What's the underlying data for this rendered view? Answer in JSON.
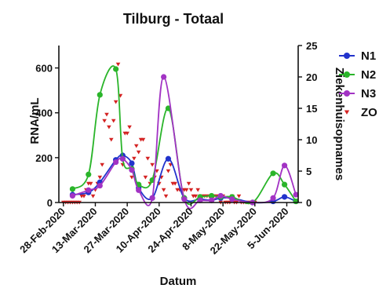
{
  "chart_data": {
    "type": "line",
    "title": "Tilburg - Totaal",
    "xlabel": "Datum",
    "ylabel": "RNA/mL",
    "y2label": "Ziekenhuisopnames",
    "x_tick_labels": [
      "28-Feb-2020",
      "13-Mar-2020",
      "27-Mar-2020",
      "10-Apr-2020",
      "24-Apr-2020",
      "8-May-2020",
      "22-May-2020",
      "5-Jun-2020"
    ],
    "x_ticks": [
      "2020-02-28",
      "2020-03-13",
      "2020-03-27",
      "2020-04-10",
      "2020-04-24",
      "2020-05-08",
      "2020-05-22",
      "2020-06-05"
    ],
    "xlim": [
      "2020-02-26",
      "2020-06-10"
    ],
    "ylim": [
      0,
      700
    ],
    "yticks": [
      0,
      200,
      400,
      600
    ],
    "y2lim": [
      0,
      25
    ],
    "y2ticks": [
      0,
      5,
      10,
      15,
      20,
      25
    ],
    "legend_position": "right",
    "series": [
      {
        "name": "N1",
        "axis": "left",
        "style": "line",
        "color": "#2233cc",
        "marker": "circle",
        "points": [
          [
            "2020-03-03",
            35
          ],
          [
            "2020-03-10",
            45
          ],
          [
            "2020-03-15",
            90
          ],
          [
            "2020-03-22",
            190
          ],
          [
            "2020-03-25",
            210
          ],
          [
            "2020-03-29",
            175
          ],
          [
            "2020-04-01",
            65
          ],
          [
            "2020-04-07",
            20
          ],
          [
            "2020-04-14",
            195
          ],
          [
            "2020-04-21",
            20
          ],
          [
            "2020-04-28",
            15
          ],
          [
            "2020-05-03",
            10
          ],
          [
            "2020-05-07",
            20
          ],
          [
            "2020-05-12",
            20
          ],
          [
            "2020-05-21",
            0
          ],
          [
            "2020-05-30",
            5
          ],
          [
            "2020-06-04",
            25
          ],
          [
            "2020-06-09",
            5
          ]
        ]
      },
      {
        "name": "N2",
        "axis": "left",
        "style": "line",
        "color": "#2ab52a",
        "marker": "circle",
        "points": [
          [
            "2020-03-03",
            60
          ],
          [
            "2020-03-10",
            125
          ],
          [
            "2020-03-15",
            480
          ],
          [
            "2020-03-22",
            595
          ],
          [
            "2020-03-25",
            195
          ],
          [
            "2020-03-29",
            150
          ],
          [
            "2020-04-01",
            80
          ],
          [
            "2020-04-07",
            100
          ],
          [
            "2020-04-14",
            420
          ],
          [
            "2020-04-21",
            20
          ],
          [
            "2020-04-28",
            25
          ],
          [
            "2020-05-03",
            30
          ],
          [
            "2020-05-07",
            25
          ],
          [
            "2020-05-12",
            25
          ],
          [
            "2020-05-21",
            0
          ],
          [
            "2020-05-30",
            130
          ],
          [
            "2020-06-04",
            80
          ],
          [
            "2020-06-09",
            5
          ]
        ]
      },
      {
        "name": "N3",
        "axis": "left",
        "style": "line",
        "color": "#a233c4",
        "marker": "circle",
        "points": [
          [
            "2020-03-03",
            30
          ],
          [
            "2020-03-10",
            55
          ],
          [
            "2020-03-15",
            75
          ],
          [
            "2020-03-22",
            180
          ],
          [
            "2020-03-25",
            195
          ],
          [
            "2020-03-29",
            145
          ],
          [
            "2020-04-01",
            55
          ],
          [
            "2020-04-07",
            20
          ],
          [
            "2020-04-12",
            560
          ],
          [
            "2020-04-21",
            15
          ],
          [
            "2020-04-28",
            10
          ],
          [
            "2020-05-03",
            10
          ],
          [
            "2020-05-07",
            30
          ],
          [
            "2020-05-12",
            15
          ],
          [
            "2020-05-21",
            0
          ],
          [
            "2020-05-30",
            20
          ],
          [
            "2020-06-04",
            165
          ],
          [
            "2020-06-09",
            35
          ]
        ]
      },
      {
        "name": "ZO",
        "axis": "right",
        "style": "scatter",
        "color": "#d42222",
        "marker": "triangle-down",
        "points": [
          [
            "2020-02-28",
            0
          ],
          [
            "2020-02-29",
            0
          ],
          [
            "2020-03-01",
            0
          ],
          [
            "2020-03-02",
            0
          ],
          [
            "2020-03-03",
            0
          ],
          [
            "2020-03-04",
            0
          ],
          [
            "2020-03-05",
            0
          ],
          [
            "2020-03-06",
            0
          ],
          [
            "2020-03-07",
            1
          ],
          [
            "2020-03-08",
            1
          ],
          [
            "2020-03-09",
            2
          ],
          [
            "2020-03-10",
            3
          ],
          [
            "2020-03-11",
            3
          ],
          [
            "2020-03-12",
            1
          ],
          [
            "2020-03-13",
            2
          ],
          [
            "2020-03-14",
            3
          ],
          [
            "2020-03-15",
            4
          ],
          [
            "2020-03-16",
            6
          ],
          [
            "2020-03-17",
            13
          ],
          [
            "2020-03-18",
            14
          ],
          [
            "2020-03-19",
            12
          ],
          [
            "2020-03-20",
            10
          ],
          [
            "2020-03-21",
            13
          ],
          [
            "2020-03-22",
            16
          ],
          [
            "2020-03-23",
            22
          ],
          [
            "2020-03-24",
            17
          ],
          [
            "2020-03-25",
            6
          ],
          [
            "2020-03-26",
            11
          ],
          [
            "2020-03-27",
            11
          ],
          [
            "2020-03-28",
            12
          ],
          [
            "2020-03-29",
            4
          ],
          [
            "2020-03-30",
            7
          ],
          [
            "2020-03-31",
            9
          ],
          [
            "2020-04-01",
            8
          ],
          [
            "2020-04-02",
            10
          ],
          [
            "2020-04-03",
            10
          ],
          [
            "2020-04-04",
            4
          ],
          [
            "2020-04-05",
            7
          ],
          [
            "2020-04-06",
            3
          ],
          [
            "2020-04-07",
            6
          ],
          [
            "2020-04-08",
            4
          ],
          [
            "2020-04-09",
            5
          ],
          [
            "2020-04-10",
            3
          ],
          [
            "2020-04-11",
            4
          ],
          [
            "2020-04-12",
            2
          ],
          [
            "2020-04-13",
            1
          ],
          [
            "2020-04-14",
            5
          ],
          [
            "2020-04-15",
            6
          ],
          [
            "2020-04-16",
            3
          ],
          [
            "2020-04-17",
            3
          ],
          [
            "2020-04-18",
            2
          ],
          [
            "2020-04-19",
            2
          ],
          [
            "2020-04-20",
            2
          ],
          [
            "2020-04-21",
            2
          ],
          [
            "2020-04-22",
            2
          ],
          [
            "2020-04-23",
            3
          ],
          [
            "2020-04-24",
            2
          ],
          [
            "2020-04-25",
            1
          ],
          [
            "2020-04-26",
            1
          ],
          [
            "2020-04-27",
            2
          ],
          [
            "2020-04-28",
            1
          ],
          [
            "2020-04-29",
            1
          ],
          [
            "2020-04-30",
            1
          ],
          [
            "2020-05-01",
            1
          ],
          [
            "2020-05-02",
            1
          ],
          [
            "2020-05-03",
            1
          ],
          [
            "2020-05-04",
            1
          ],
          [
            "2020-05-05",
            1
          ],
          [
            "2020-05-06",
            1
          ],
          [
            "2020-05-07",
            0
          ],
          [
            "2020-05-08",
            1
          ],
          [
            "2020-05-09",
            0
          ],
          [
            "2020-05-10",
            0
          ],
          [
            "2020-05-11",
            0
          ],
          [
            "2020-05-12",
            1
          ],
          [
            "2020-05-13",
            0
          ],
          [
            "2020-05-14",
            0
          ],
          [
            "2020-05-15",
            1
          ],
          [
            "2020-05-16",
            0
          ],
          [
            "2020-05-17",
            0
          ],
          [
            "2020-05-18",
            0
          ],
          [
            "2020-05-19",
            0
          ],
          [
            "2020-05-20",
            0
          ],
          [
            "2020-05-21",
            0
          ],
          [
            "2020-05-22",
            0
          ]
        ]
      }
    ]
  }
}
